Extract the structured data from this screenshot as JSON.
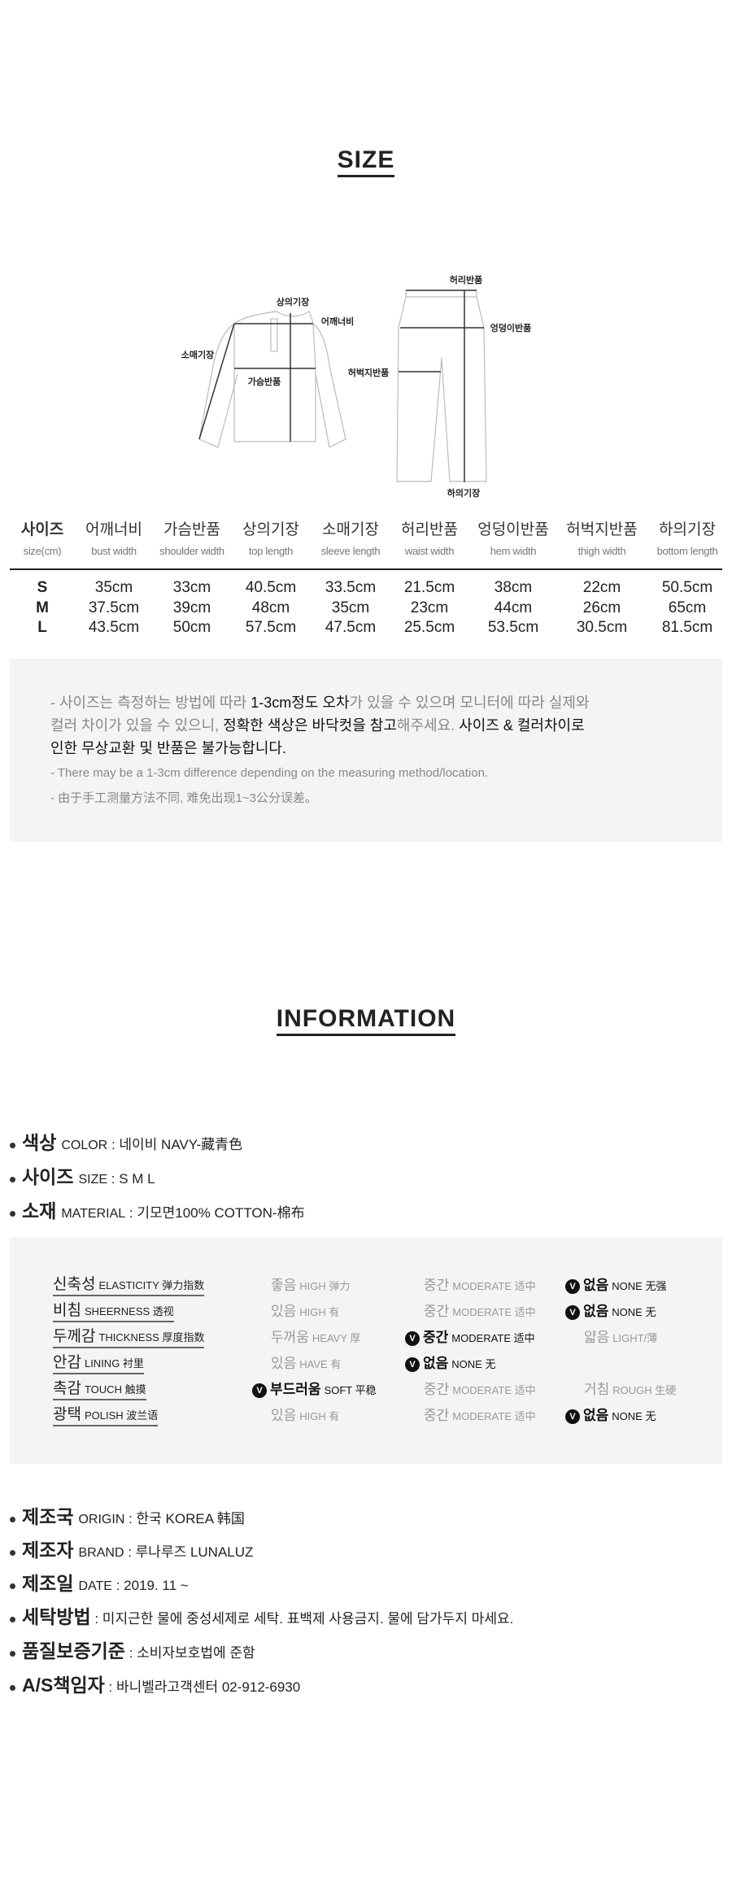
{
  "size_section": {
    "title": "SIZE",
    "diagram": {
      "top_length": "상의기장",
      "shoulder": "어깨너비",
      "sleeve": "소매기장",
      "chest": "가슴반품",
      "waist": "허리반품",
      "hip": "엉덩이반품",
      "thigh": "허벅지반품",
      "bottom_length": "하의기장"
    },
    "table": {
      "headers": [
        {
          "k": "사이즈",
          "e": "size(cm)"
        },
        {
          "k": "어깨너비",
          "e": "bust width"
        },
        {
          "k": "가슴반품",
          "e": "shoulder width"
        },
        {
          "k": "상의기장",
          "e": "top length"
        },
        {
          "k": "소매기장",
          "e": "sleeve length"
        },
        {
          "k": "허리반품",
          "e": "waist width"
        },
        {
          "k": "엉덩이반품",
          "e": "hem width"
        },
        {
          "k": "허벅지반품",
          "e": "thigh width"
        },
        {
          "k": "하의기장",
          "e": "bottom length"
        }
      ],
      "rows": [
        [
          "S",
          "35cm",
          "33cm",
          "40.5cm",
          "33.5cm",
          "21.5cm",
          "38cm",
          "22cm",
          "50.5cm"
        ],
        [
          "M",
          "37.5cm",
          "39cm",
          "48cm",
          "35cm",
          "23cm",
          "44cm",
          "26cm",
          "65cm"
        ],
        [
          "L",
          "43.5cm",
          "50cm",
          "57.5cm",
          "47.5cm",
          "25.5cm",
          "53.5cm",
          "30.5cm",
          "81.5cm"
        ]
      ]
    },
    "notice": {
      "l1a": "- 사이즈는 측정하는 방법에 따라 ",
      "l1b": "1-3cm정도 오차",
      "l1c": "가 있을 수 있으며 모니터에 따라 실제와",
      "l2a": "컬러 차이가 있을 수 있으니, ",
      "l2b": "정확한 색상은 바닥컷을 참고",
      "l2c": "해주세요. ",
      "l2d": "사이즈 & 컬러차이로",
      "l3": "인한 무상교환 및 반품은 불가능합니다.",
      "en": "- There may be a 1-3cm difference depending on the measuring method/location.",
      "zh": "- 由于手工测量方法不同, 难免出现1~3公分误差。"
    }
  },
  "info_section": {
    "title": "INFORMATION",
    "basic": [
      {
        "k": "색상",
        "e": "COLOR",
        "v": " : 네이비  NAVY-藏青色"
      },
      {
        "k": "사이즈",
        "e": "SIZE",
        "v": " : S  M  L"
      },
      {
        "k": "소재",
        "e": "MATERIAL",
        "v": " : 기모면100% COTTON-棉布"
      }
    ],
    "specs": [
      {
        "k": "신축성",
        "e": "ELASTICITY 弹力指数",
        "opts": [
          {
            "k": "좋음",
            "e": "HIGH 弹力",
            "on": false
          },
          {
            "k": "중간",
            "e": "MODERATE 适中",
            "on": false
          },
          {
            "k": "없음",
            "e": "NONE 无强",
            "on": true
          }
        ]
      },
      {
        "k": "비침",
        "e": "SHEERNESS 透视",
        "opts": [
          {
            "k": "있음",
            "e": "HIGH 有",
            "on": false
          },
          {
            "k": "중간",
            "e": "MODERATE 适中",
            "on": false
          },
          {
            "k": "없음",
            "e": "NONE 无",
            "on": true
          }
        ]
      },
      {
        "k": "두께감",
        "e": "THICKNESS 厚度指数",
        "opts": [
          {
            "k": "두꺼움",
            "e": "HEAVY 厚",
            "on": false
          },
          {
            "k": "중간",
            "e": "MODERATE 适中",
            "on": true
          },
          {
            "k": "얇음",
            "e": "LIGHT/薄",
            "on": false
          }
        ]
      },
      {
        "k": "안감",
        "e": "LINING 衬里",
        "opts": [
          {
            "k": "있음",
            "e": "HAVE 有",
            "on": false
          },
          {
            "k": "없음",
            "e": "NONE 无",
            "on": true
          }
        ]
      },
      {
        "k": "촉감",
        "e": "TOUCH 触摸",
        "opts": [
          {
            "k": "부드러움",
            "e": "SOFT 平稳",
            "on": true
          },
          {
            "k": "중간",
            "e": "MODERATE 适中",
            "on": false
          },
          {
            "k": "거침",
            "e": "ROUGH 生硬",
            "on": false
          }
        ]
      },
      {
        "k": "광택",
        "e": "POLISH 波兰语",
        "opts": [
          {
            "k": "있음",
            "e": "HIGH 有",
            "on": false
          },
          {
            "k": "중간",
            "e": "MODERATE 适中",
            "on": false
          },
          {
            "k": "없음",
            "e": "NONE 无",
            "on": true
          }
        ]
      }
    ],
    "check_mark": "V",
    "details": [
      {
        "k": "제조국",
        "e": "ORIGIN",
        "v": " : 한국 KOREA 韩国"
      },
      {
        "k": "제조자",
        "e": "BRAND",
        "v": " : 루나루즈 LUNALUZ"
      },
      {
        "k": "제조일",
        "e": "DATE",
        "v": " : 2019. 11 ~"
      },
      {
        "k": "세탁방법",
        "e": "",
        "v": " : 미지근한 물에 중성세제로 세탁. 표백제 사용금지. 물에 담가두지 마세요."
      },
      {
        "k": "품질보증기준",
        "e": "",
        "v": " : 소비자보호법에 준함"
      },
      {
        "k": "A/S책임자",
        "e": "",
        "v": " : 바니벨라고객센터 02-912-6930"
      }
    ]
  }
}
